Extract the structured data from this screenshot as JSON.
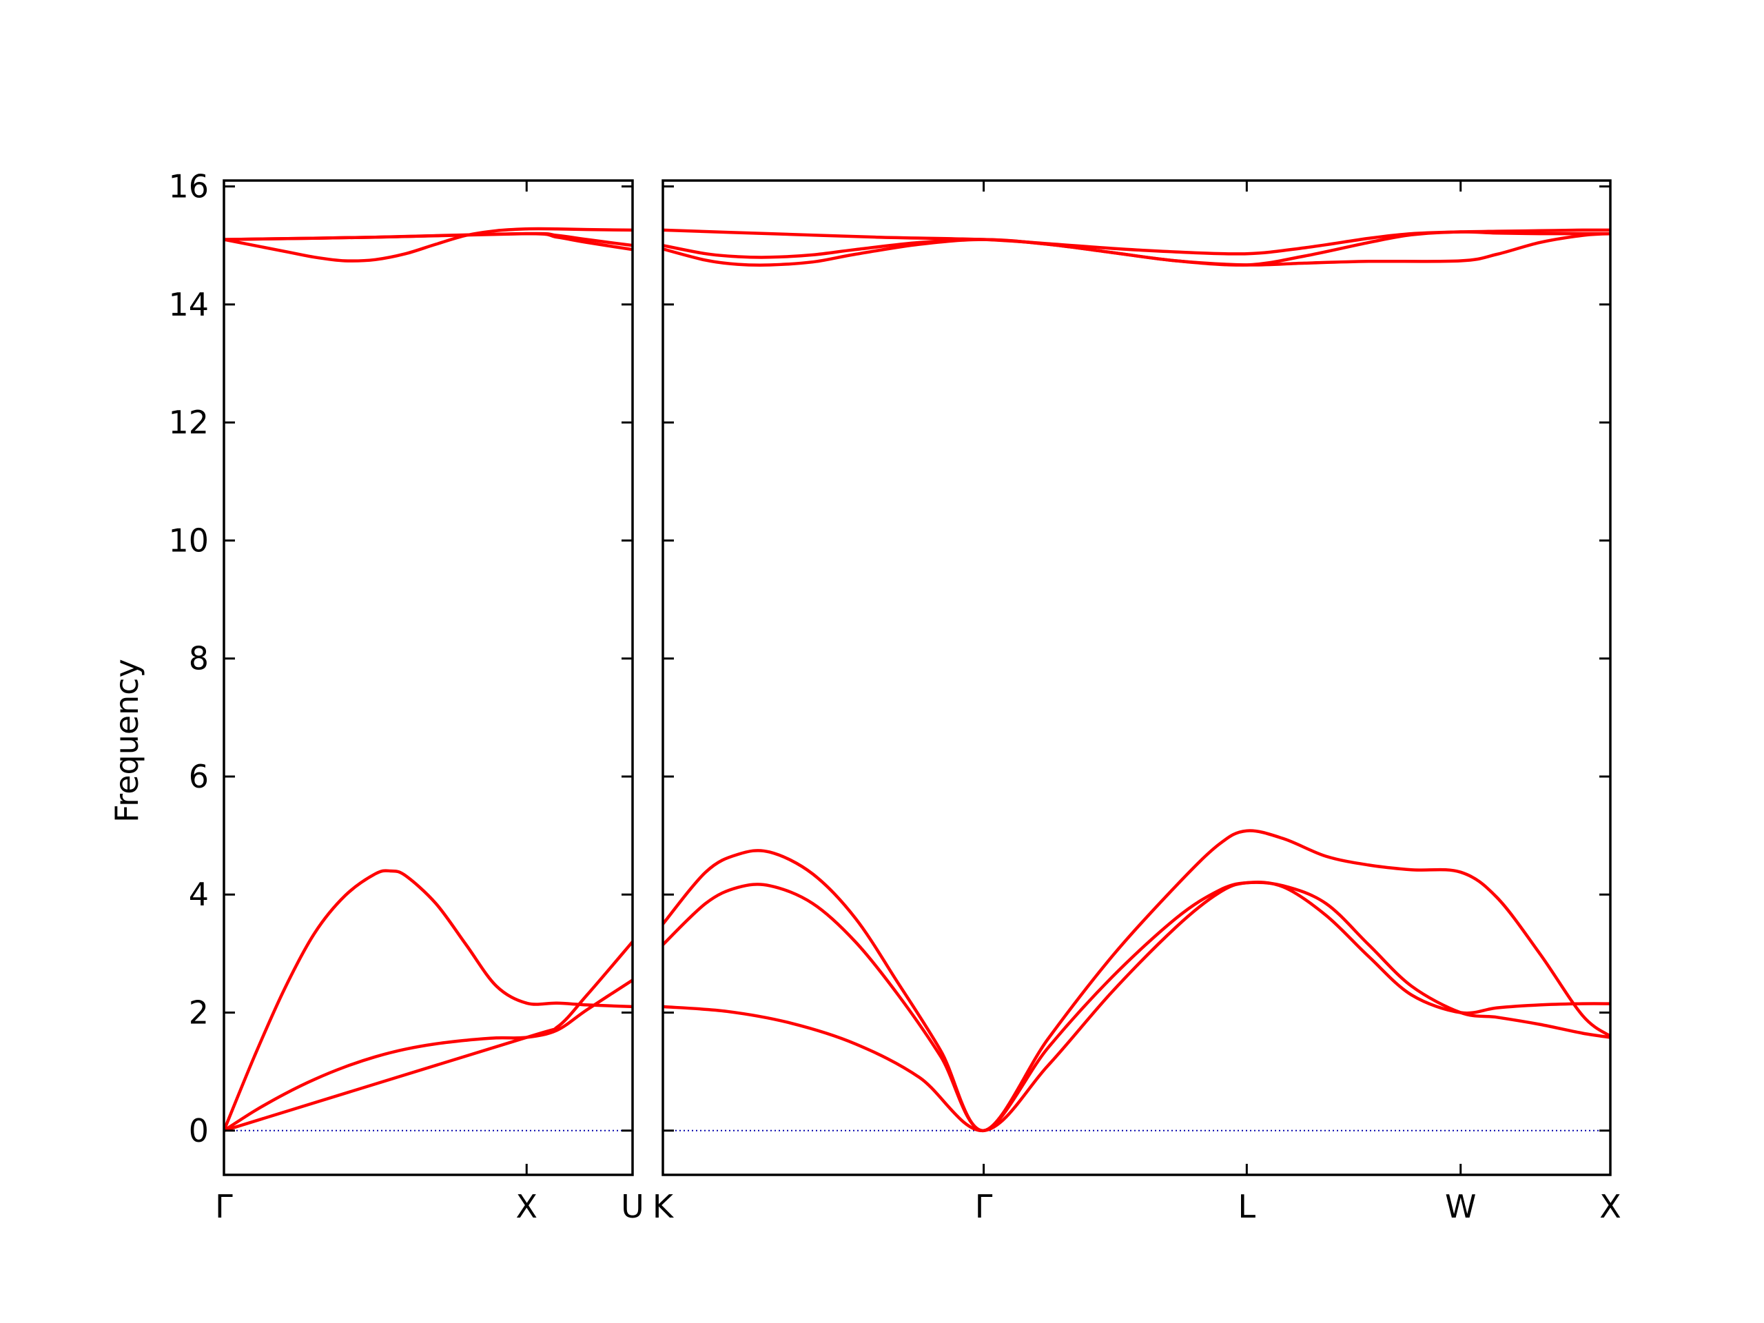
{
  "chart_data": {
    "type": "line",
    "ylabel": "Frequency",
    "ylim": [
      -0.75,
      16.1
    ],
    "yticks": [
      0,
      2,
      4,
      6,
      8,
      10,
      12,
      14,
      16
    ],
    "colors": {
      "bands": "#ff0000",
      "zero_line": "#0000aa",
      "axes": "#000000"
    },
    "zero_line": {
      "y": 0,
      "style": "dotted"
    },
    "grid": false,
    "panels": [
      {
        "name": "left",
        "x_range": [
          0,
          1.35
        ],
        "ticks": [
          {
            "x": 0,
            "label": "Γ"
          },
          {
            "x": 1.0,
            "label": "X"
          },
          {
            "x": 1.35,
            "label": "U"
          }
        ],
        "series": [
          {
            "x": [
              0,
              0.1,
              0.2,
              0.3,
              0.4,
              0.5,
              0.6,
              0.7,
              0.8,
              0.9,
              1.0,
              1.1,
              1.2,
              1.35
            ],
            "y": [
              0,
              0.33,
              0.62,
              0.87,
              1.08,
              1.25,
              1.38,
              1.47,
              1.53,
              1.57,
              1.58,
              1.7,
              2.05,
              2.55
            ]
          },
          {
            "x": [
              0,
              0.1,
              0.2,
              0.3,
              0.4,
              0.5,
              0.55,
              0.6,
              0.7,
              0.8,
              0.9,
              1.0,
              1.1,
              1.2,
              1.35
            ],
            "y": [
              0,
              1.25,
              2.4,
              3.35,
              3.98,
              4.35,
              4.4,
              4.32,
              3.85,
              3.15,
              2.45,
              2.16,
              2.16,
              2.13,
              2.1
            ]
          },
          {
            "x": [
              0,
              1.0,
              1.1,
              1.2,
              1.35
            ],
            "y": [
              0,
              1.58,
              1.75,
              2.3,
              3.2
            ]
          },
          {
            "x": [
              0,
              0.2,
              0.3,
              0.4,
              0.5,
              0.6,
              0.7,
              0.8,
              0.9,
              1.0,
              1.1,
              1.2,
              1.35
            ],
            "y": [
              15.1,
              14.9,
              14.8,
              14.74,
              14.76,
              14.86,
              15.02,
              15.17,
              15.25,
              15.28,
              15.28,
              15.27,
              15.26
            ]
          },
          {
            "x": [
              0,
              0.5,
              1.0,
              1.1,
              1.2,
              1.35
            ],
            "y": [
              15.1,
              15.14,
              15.2,
              15.17,
              15.1,
              15.0
            ]
          },
          {
            "x": [
              0,
              0.5,
              1.0,
              1.1,
              1.2,
              1.35
            ],
            "y": [
              15.1,
              15.14,
              15.2,
              15.14,
              15.05,
              14.93
            ]
          }
        ]
      },
      {
        "name": "right",
        "x_range": [
          0,
          4.43
        ],
        "ticks": [
          {
            "x": 0,
            "label": "K"
          },
          {
            "x": 1.5,
            "label": "Γ"
          },
          {
            "x": 2.73,
            "label": "L"
          },
          {
            "x": 3.73,
            "label": "W"
          },
          {
            "x": 4.43,
            "label": "X"
          }
        ],
        "series": [
          {
            "x": [
              0,
              0.3,
              0.6,
              0.9,
              1.2,
              1.5,
              1.8,
              2.1,
              2.4,
              2.6,
              2.73,
              2.9,
              3.1,
              3.3,
              3.5,
              3.73,
              3.9,
              4.1,
              4.3,
              4.43
            ],
            "y": [
              2.1,
              2.02,
              1.82,
              1.47,
              0.9,
              0,
              1.1,
              2.35,
              3.45,
              4.03,
              4.2,
              4.13,
              3.65,
              2.95,
              2.3,
              2.0,
              2.08,
              2.13,
              2.15,
              2.15
            ]
          },
          {
            "x": [
              0,
              0.2,
              0.35,
              0.5,
              0.7,
              0.9,
              1.1,
              1.3,
              1.5,
              1.8,
              2.1,
              2.4,
              2.6,
              2.73,
              2.9,
              3.1,
              3.3,
              3.5,
              3.73,
              3.9,
              4.1,
              4.3,
              4.43
            ],
            "y": [
              3.15,
              3.85,
              4.12,
              4.15,
              3.85,
              3.2,
              2.3,
              1.25,
              0,
              1.4,
              2.6,
              3.6,
              4.07,
              4.2,
              4.15,
              3.85,
              3.15,
              2.45,
              2.0,
              1.92,
              1.8,
              1.65,
              1.58
            ]
          },
          {
            "x": [
              0,
              0.2,
              0.35,
              0.5,
              0.7,
              0.9,
              1.1,
              1.3,
              1.5,
              1.8,
              2.1,
              2.4,
              2.6,
              2.73,
              2.9,
              3.1,
              3.3,
              3.5,
              3.73,
              3.9,
              4.1,
              4.3,
              4.43
            ],
            "y": [
              3.5,
              4.38,
              4.68,
              4.72,
              4.35,
              3.6,
              2.5,
              1.35,
              0,
              1.55,
              2.95,
              4.15,
              4.85,
              5.08,
              4.95,
              4.65,
              4.5,
              4.42,
              4.38,
              3.95,
              3.0,
              1.95,
              1.6
            ]
          },
          {
            "x": [
              0,
              0.2,
              0.35,
              0.5,
              0.7,
              0.9,
              1.2,
              1.5,
              1.8,
              2.1,
              2.4,
              2.73,
              3.0,
              3.3,
              3.73,
              3.9,
              4.1,
              4.3,
              4.43
            ],
            "y": [
              14.94,
              14.75,
              14.68,
              14.67,
              14.72,
              14.85,
              15.02,
              15.1,
              15.02,
              14.88,
              14.74,
              14.67,
              14.7,
              14.73,
              14.74,
              14.85,
              15.05,
              15.17,
              15.2
            ]
          },
          {
            "x": [
              0,
              0.2,
              0.35,
              0.5,
              0.7,
              0.9,
              1.2,
              1.5,
              1.8,
              2.1,
              2.4,
              2.73,
              3.0,
              3.3,
              3.5,
              3.73,
              3.9,
              4.1,
              4.3,
              4.43
            ],
            "y": [
              15.0,
              14.86,
              14.81,
              14.8,
              14.84,
              14.93,
              15.05,
              15.1,
              15.02,
              14.88,
              14.74,
              14.67,
              14.82,
              15.05,
              15.18,
              15.23,
              15.21,
              15.2,
              15.2,
              15.2
            ]
          },
          {
            "x": [
              0,
              0.5,
              1.0,
              1.5,
              1.8,
              2.1,
              2.4,
              2.73,
              3.0,
              3.3,
              3.5,
              3.73,
              3.9,
              4.1,
              4.3,
              4.43
            ],
            "y": [
              15.26,
              15.2,
              15.14,
              15.1,
              15.03,
              14.95,
              14.89,
              14.86,
              14.96,
              15.12,
              15.2,
              15.23,
              15.24,
              15.25,
              15.26,
              15.26
            ]
          }
        ]
      }
    ]
  }
}
